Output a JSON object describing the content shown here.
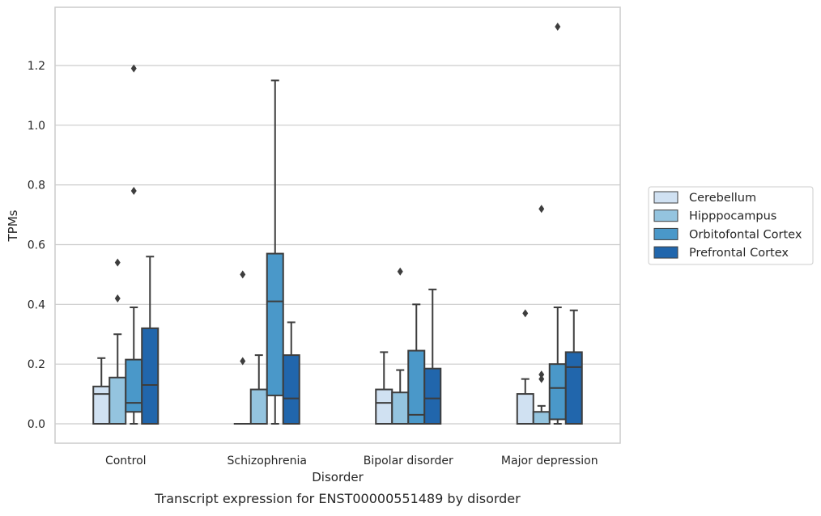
{
  "chart_data": {
    "type": "box",
    "title": "",
    "caption": "Transcript expression for ENST00000551489 by disorder",
    "xlabel": "Disorder",
    "ylabel": "TPMs",
    "ylim": [
      -0.065,
      1.395
    ],
    "yticks": [
      "0.0",
      "0.2",
      "0.4",
      "0.6",
      "0.8",
      "1.0",
      "1.2"
    ],
    "grid": "horizontal",
    "legend_position": "right",
    "categories": [
      "Control",
      "Schizophrenia",
      "Bipolar disorder",
      "Major depression"
    ],
    "series": [
      {
        "name": "Cerebellum",
        "color": "#d0e1f2",
        "boxes": [
          {
            "q1": 0.0,
            "median": 0.1,
            "q3": 0.125,
            "whisker_low": 0.0,
            "whisker_high": 0.22,
            "outliers": []
          },
          {
            "q1": 0.0,
            "median": 0.0,
            "q3": 0.0,
            "whisker_low": 0.0,
            "whisker_high": 0.0,
            "outliers": [
              0.21,
              0.5
            ]
          },
          {
            "q1": 0.0,
            "median": 0.07,
            "q3": 0.115,
            "whisker_low": 0.0,
            "whisker_high": 0.24,
            "outliers": []
          },
          {
            "q1": 0.0,
            "median": 0.0,
            "q3": 0.1,
            "whisker_low": 0.0,
            "whisker_high": 0.15,
            "outliers": [
              0.37
            ]
          }
        ]
      },
      {
        "name": "Hipppocampus",
        "color": "#94c4df",
        "boxes": [
          {
            "q1": 0.0,
            "median": 0.0,
            "q3": 0.155,
            "whisker_low": 0.0,
            "whisker_high": 0.3,
            "outliers": [
              0.42,
              0.54
            ]
          },
          {
            "q1": 0.0,
            "median": 0.0,
            "q3": 0.115,
            "whisker_low": 0.0,
            "whisker_high": 0.23,
            "outliers": []
          },
          {
            "q1": 0.0,
            "median": 0.0,
            "q3": 0.105,
            "whisker_low": 0.0,
            "whisker_high": 0.18,
            "outliers": [
              0.51
            ]
          },
          {
            "q1": 0.0,
            "median": 0.0,
            "q3": 0.04,
            "whisker_low": 0.0,
            "whisker_high": 0.06,
            "outliers": [
              0.15,
              0.165,
              0.72
            ]
          }
        ]
      },
      {
        "name": "Orbitofontal Cortex",
        "color": "#4a98c9",
        "boxes": [
          {
            "q1": 0.04,
            "median": 0.07,
            "q3": 0.215,
            "whisker_low": 0.0,
            "whisker_high": 0.39,
            "outliers": [
              0.78,
              1.19
            ]
          },
          {
            "q1": 0.095,
            "median": 0.41,
            "q3": 0.57,
            "whisker_low": 0.0,
            "whisker_high": 1.15,
            "outliers": []
          },
          {
            "q1": 0.0,
            "median": 0.03,
            "q3": 0.245,
            "whisker_low": 0.0,
            "whisker_high": 0.4,
            "outliers": []
          },
          {
            "q1": 0.015,
            "median": 0.12,
            "q3": 0.2,
            "whisker_low": 0.0,
            "whisker_high": 0.39,
            "outliers": [
              1.33
            ]
          }
        ]
      },
      {
        "name": "Prefrontal Cortex",
        "color": "#2166ac",
        "boxes": [
          {
            "q1": 0.0,
            "median": 0.13,
            "q3": 0.32,
            "whisker_low": 0.0,
            "whisker_high": 0.56,
            "outliers": []
          },
          {
            "q1": 0.0,
            "median": 0.085,
            "q3": 0.23,
            "whisker_low": 0.0,
            "whisker_high": 0.34,
            "outliers": []
          },
          {
            "q1": 0.0,
            "median": 0.085,
            "q3": 0.185,
            "whisker_low": 0.0,
            "whisker_high": 0.45,
            "outliers": []
          },
          {
            "q1": 0.0,
            "median": 0.19,
            "q3": 0.24,
            "whisker_low": 0.0,
            "whisker_high": 0.38,
            "outliers": []
          }
        ]
      }
    ]
  }
}
